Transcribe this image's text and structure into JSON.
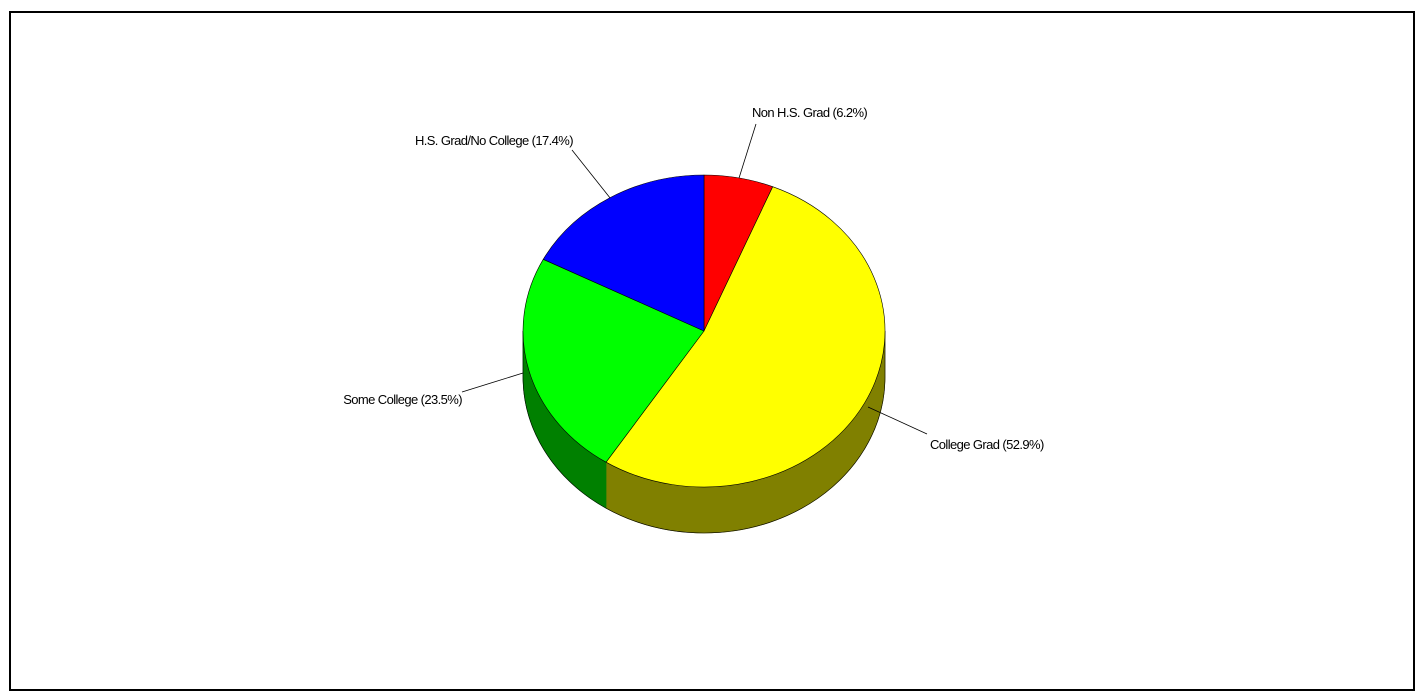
{
  "chart_data": {
    "type": "pie",
    "title": "",
    "style": "3d",
    "slices": [
      {
        "label": "Non H.S. Grad",
        "value": 6.2,
        "display": "Non H.S. Grad (6.2%)",
        "color": "#ff0000"
      },
      {
        "label": "College Grad",
        "value": 52.9,
        "display": "College Grad (52.9%)",
        "color": "#ffff00",
        "side_color": "#808000"
      },
      {
        "label": "Some College",
        "value": 23.5,
        "display": "Some College (23.5%)",
        "color": "#00ff00",
        "side_color": "#008000"
      },
      {
        "label": "H.S. Grad/No College",
        "value": 17.4,
        "display": "H.S. Grad/No College (17.4%)",
        "color": "#0000ff"
      }
    ]
  }
}
